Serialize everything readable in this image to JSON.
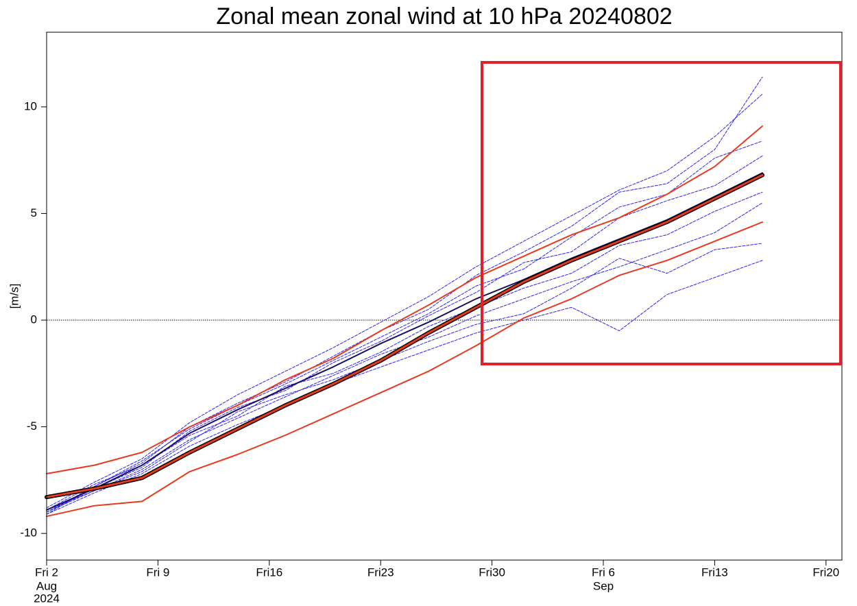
{
  "chart_data": {
    "type": "line",
    "title": "Zonal mean zonal wind at 10 hPa 20240802",
    "y_label": "[m/s]",
    "x": [
      "2024-08-02",
      "2024-08-05",
      "2024-08-08",
      "2024-08-11",
      "2024-08-14",
      "2024-08-17",
      "2024-08-20",
      "2024-08-23",
      "2024-08-26",
      "2024-08-29",
      "2024-09-01",
      "2024-09-04",
      "2024-09-07",
      "2024-09-10",
      "2024-09-13",
      "2024-09-16"
    ],
    "xlim": [
      "2024-08-02",
      "2024-09-21"
    ],
    "xticks": [
      {
        "value": "2024-08-02",
        "label": "Fri 2"
      },
      {
        "value": "2024-08-09",
        "label": "Fri 9"
      },
      {
        "value": "2024-08-16",
        "label": "Fri16"
      },
      {
        "value": "2024-08-23",
        "label": "Fri23"
      },
      {
        "value": "2024-08-30",
        "label": "Fri30"
      },
      {
        "value": "2024-09-06",
        "label": "Fri 6"
      },
      {
        "value": "2024-09-13",
        "label": "Fri13"
      },
      {
        "value": "2024-09-20",
        "label": "Fri20"
      }
    ],
    "xtick_month_labels": [
      {
        "value": "2024-08-02",
        "label": "Aug"
      },
      {
        "value": "2024-09-06",
        "label": "Sep"
      }
    ],
    "xtick_year_labels": [
      {
        "value": "2024-08-02",
        "label": "2024"
      }
    ],
    "ylim": [
      -11.25,
      13.5
    ],
    "yticks": [
      -10,
      -5,
      0,
      5,
      10
    ],
    "reference_line": 0,
    "series": [
      {
        "color": "#2a1ef5",
        "line_style": "dashed",
        "line_width": 1,
        "values": [
          -8.8,
          -7.6,
          -6.5,
          -4.8,
          -3.5,
          -2.4,
          -1.3,
          -0.1,
          1.1,
          2.5,
          3.7,
          4.9,
          6.1,
          7.0,
          8.6,
          10.6
        ]
      },
      {
        "color": "#2a1ef5",
        "line_style": "dashed",
        "line_width": 1,
        "values": [
          -9.1,
          -8.1,
          -7.2,
          -5.9,
          -4.9,
          -4.0,
          -3.0,
          -2.2,
          -1.4,
          -0.6,
          0.0,
          0.6,
          -0.5,
          1.2,
          2.0,
          2.8
        ]
      },
      {
        "color": "#2a1ef5",
        "line_style": "dashed",
        "line_width": 1,
        "values": [
          -9.0,
          -7.8,
          -6.6,
          -5.1,
          -4.0,
          -3.0,
          -1.9,
          -0.8,
          0.3,
          1.6,
          2.4,
          3.9,
          5.3,
          5.9,
          7.6,
          8.4
        ]
      },
      {
        "color": "#2a1ef5",
        "line_style": "dashed",
        "line_width": 1,
        "values": [
          -8.9,
          -8.0,
          -7.0,
          -5.6,
          -4.6,
          -3.6,
          -2.6,
          -1.6,
          -0.8,
          0.2,
          1.0,
          1.8,
          2.5,
          3.3,
          4.1,
          5.5
        ]
      },
      {
        "color": "#2a1ef5",
        "line_style": "dashed",
        "line_width": 1,
        "values": [
          -9.0,
          -7.9,
          -6.9,
          -5.2,
          -4.1,
          -3.3,
          -2.0,
          -1.0,
          0.2,
          1.3,
          2.7,
          3.2,
          4.8,
          5.6,
          6.3,
          7.7
        ]
      },
      {
        "color": "#2a1ef5",
        "line_style": "dashed",
        "line_width": 1,
        "values": [
          -8.9,
          -7.7,
          -6.8,
          -5.4,
          -4.5,
          -3.1,
          -2.5,
          -1.5,
          -0.3,
          0.6,
          1.5,
          2.2,
          3.5,
          4.0,
          5.1,
          6.0
        ]
      },
      {
        "color": "#2a1ef5",
        "line_style": "dashed",
        "line_width": 1,
        "values": [
          -9.1,
          -7.8,
          -6.7,
          -5.0,
          -3.9,
          -2.9,
          -1.7,
          -0.5,
          0.5,
          2.1,
          3.2,
          4.4,
          6.0,
          6.4,
          8.0,
          11.4
        ]
      },
      {
        "color": "#2a1ef5",
        "line_style": "dashed",
        "line_width": 1,
        "values": [
          -9.0,
          -8.0,
          -7.1,
          -5.7,
          -4.3,
          -3.5,
          -2.8,
          -1.9,
          -1.0,
          -0.2,
          0.3,
          1.5,
          2.9,
          2.2,
          3.3,
          3.6
        ]
      },
      {
        "color": "#1a1060",
        "line_style": "solid",
        "line_width": 2,
        "values": [
          -8.9,
          -7.9,
          -6.8,
          -5.3,
          -4.2,
          -3.2,
          -2.2,
          -1.1,
          -0.1,
          1.0,
          1.9,
          2.9,
          3.8,
          4.7,
          5.8,
          6.9
        ]
      },
      {
        "color": "#e8391c",
        "line_style": "solid",
        "line_width": 2,
        "values": [
          -7.2,
          -6.8,
          -6.2,
          -5.0,
          -4.0,
          -2.8,
          -1.8,
          -0.5,
          0.7,
          2.0,
          3.0,
          4.0,
          4.8,
          5.9,
          7.2,
          9.1
        ]
      },
      {
        "color": "#e8391c",
        "line_style": "solid",
        "line_width": 2,
        "values": [
          -9.2,
          -8.7,
          -8.5,
          -7.1,
          -6.3,
          -5.4,
          -4.4,
          -3.4,
          -2.4,
          -1.2,
          0.1,
          1.0,
          2.1,
          2.8,
          3.7,
          4.6
        ]
      },
      {
        "color": "#e8391c",
        "outline_color": "#000000",
        "line_style": "solid",
        "line_width": 3,
        "values": [
          -8.3,
          -7.9,
          -7.4,
          -6.2,
          -5.1,
          -4.0,
          -3.0,
          -1.9,
          -0.6,
          0.6,
          1.8,
          2.8,
          3.7,
          4.6,
          5.7,
          6.8
        ]
      }
    ]
  }
}
